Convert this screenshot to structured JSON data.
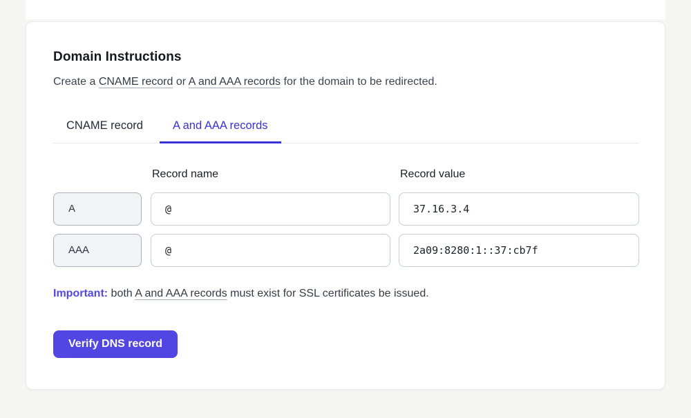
{
  "card": {
    "title": "Domain Instructions",
    "intro": {
      "prefix": "Create a ",
      "cname_link": "CNAME record",
      "middle": " or ",
      "a_link": "A and AAA records",
      "suffix": " for the domain to be redirected."
    },
    "tabs": [
      {
        "label": "CNAME record",
        "active": false
      },
      {
        "label": "A and AAA records",
        "active": true
      }
    ],
    "table": {
      "name_header": "Record name",
      "value_header": "Record value",
      "rows": [
        {
          "type": "A",
          "name": "@",
          "value": "37.16.3.4"
        },
        {
          "type": "AAA",
          "name": "@",
          "value": "2a09:8280:1::37:cb7f"
        }
      ]
    },
    "important": {
      "label": "Important:",
      "before_link": " both ",
      "link": "A and AAA records",
      "after_link": " must exist for SSL certificates be issued."
    },
    "verify_button_label": "Verify DNS record"
  },
  "colors": {
    "page_background": "#f5f5f3",
    "card_background": "#ffffff",
    "accent_tab": "#3a31d4",
    "accent_important": "#5348e0",
    "accent_button": "#5246e2",
    "chip_background": "#f2f3f5",
    "chip_border": "#a9b3c1",
    "input_border": "#c6cdd6"
  }
}
